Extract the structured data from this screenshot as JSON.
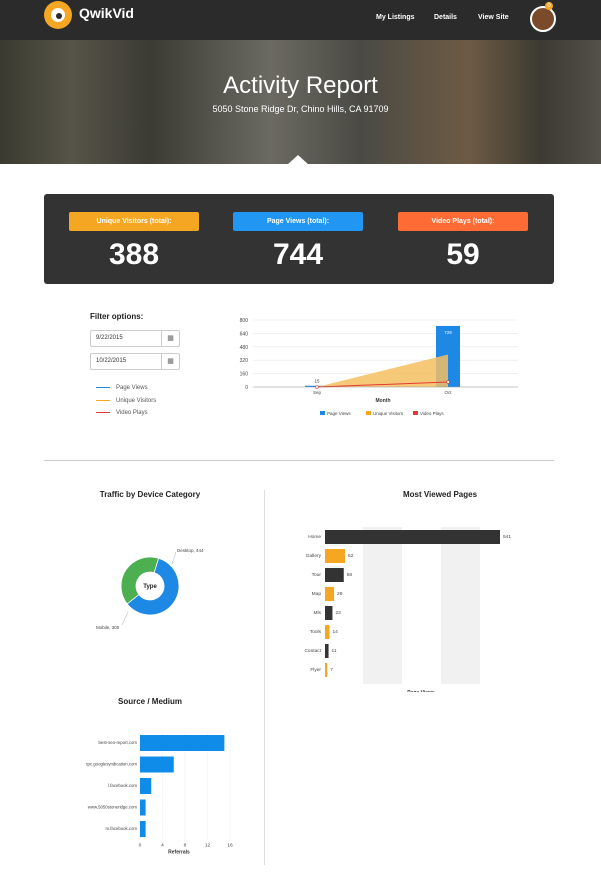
{
  "app": {
    "name": "QwikVid",
    "nav": [
      "My Listings",
      "Details",
      "View Site"
    ],
    "notification_count": "0"
  },
  "hero": {
    "title": "Activity Report",
    "address": "5050 Stone Ridge Dr, Chino Hills, CA 91709"
  },
  "stats": [
    {
      "label": "Unique Visitors (total):",
      "value": "388",
      "color": "#f5a623"
    },
    {
      "label": "Page Views (total):",
      "value": "744",
      "color": "#2196f3"
    },
    {
      "label": "Video Plays (total):",
      "value": "59",
      "color": "#ff6b35"
    }
  ],
  "filter": {
    "title": "Filter options:",
    "start_date": "9/22/2015",
    "end_date": "10/22/2015",
    "legend": [
      {
        "label": "Page Views",
        "color": "#1e88e5"
      },
      {
        "label": "Unique Visitors",
        "color": "#f5a623"
      },
      {
        "label": "Video Plays",
        "color": "#e53935"
      }
    ]
  },
  "colors": {
    "accent": "#f5a623",
    "blue": "#1e88e5",
    "dark": "#333333",
    "green": "#4caf50"
  },
  "chart_data": [
    {
      "id": "monthly",
      "type": "bar",
      "xlabel": "Month",
      "categories": [
        "Sep",
        "Oct"
      ],
      "ylim": [
        0,
        800
      ],
      "yticks": [
        0,
        160,
        320,
        480,
        640,
        800
      ],
      "series": [
        {
          "name": "Page Views",
          "type": "bar",
          "values": [
            15,
            729
          ]
        },
        {
          "name": "Unique Visitors",
          "type": "area",
          "values": [
            0,
            388
          ]
        },
        {
          "name": "Video Plays",
          "type": "line",
          "values": [
            0,
            59
          ]
        }
      ],
      "data_labels": [
        "15",
        "729"
      ]
    },
    {
      "id": "device",
      "type": "pie",
      "title": "Traffic by Device Category",
      "center_label": "Type",
      "labels": [
        "Desktop, 444",
        "Mobile, 300"
      ],
      "values": [
        444,
        300
      ]
    },
    {
      "id": "pages",
      "type": "bar",
      "title": "Most Viewed Pages",
      "xlabel": "Page Views",
      "categories": [
        "Home",
        "Gallery",
        "Tour",
        "Map",
        "Mls",
        "Tools",
        "Contact",
        "Flyer"
      ],
      "values": [
        541,
        62,
        58,
        28,
        23,
        14,
        11,
        7
      ]
    },
    {
      "id": "source",
      "type": "bar",
      "title": "Source / Medium",
      "xlabel": "Referrals",
      "categories": [
        "best-seo-report.com",
        "tpc.googlesyndication.com",
        "l.facebook.com",
        "www.5050stoneridge.com",
        "m.facebook.com"
      ],
      "values": [
        15,
        6,
        2,
        1,
        1
      ],
      "xlim": [
        0,
        16
      ],
      "xticks": [
        0,
        4,
        8,
        12,
        16
      ]
    }
  ]
}
